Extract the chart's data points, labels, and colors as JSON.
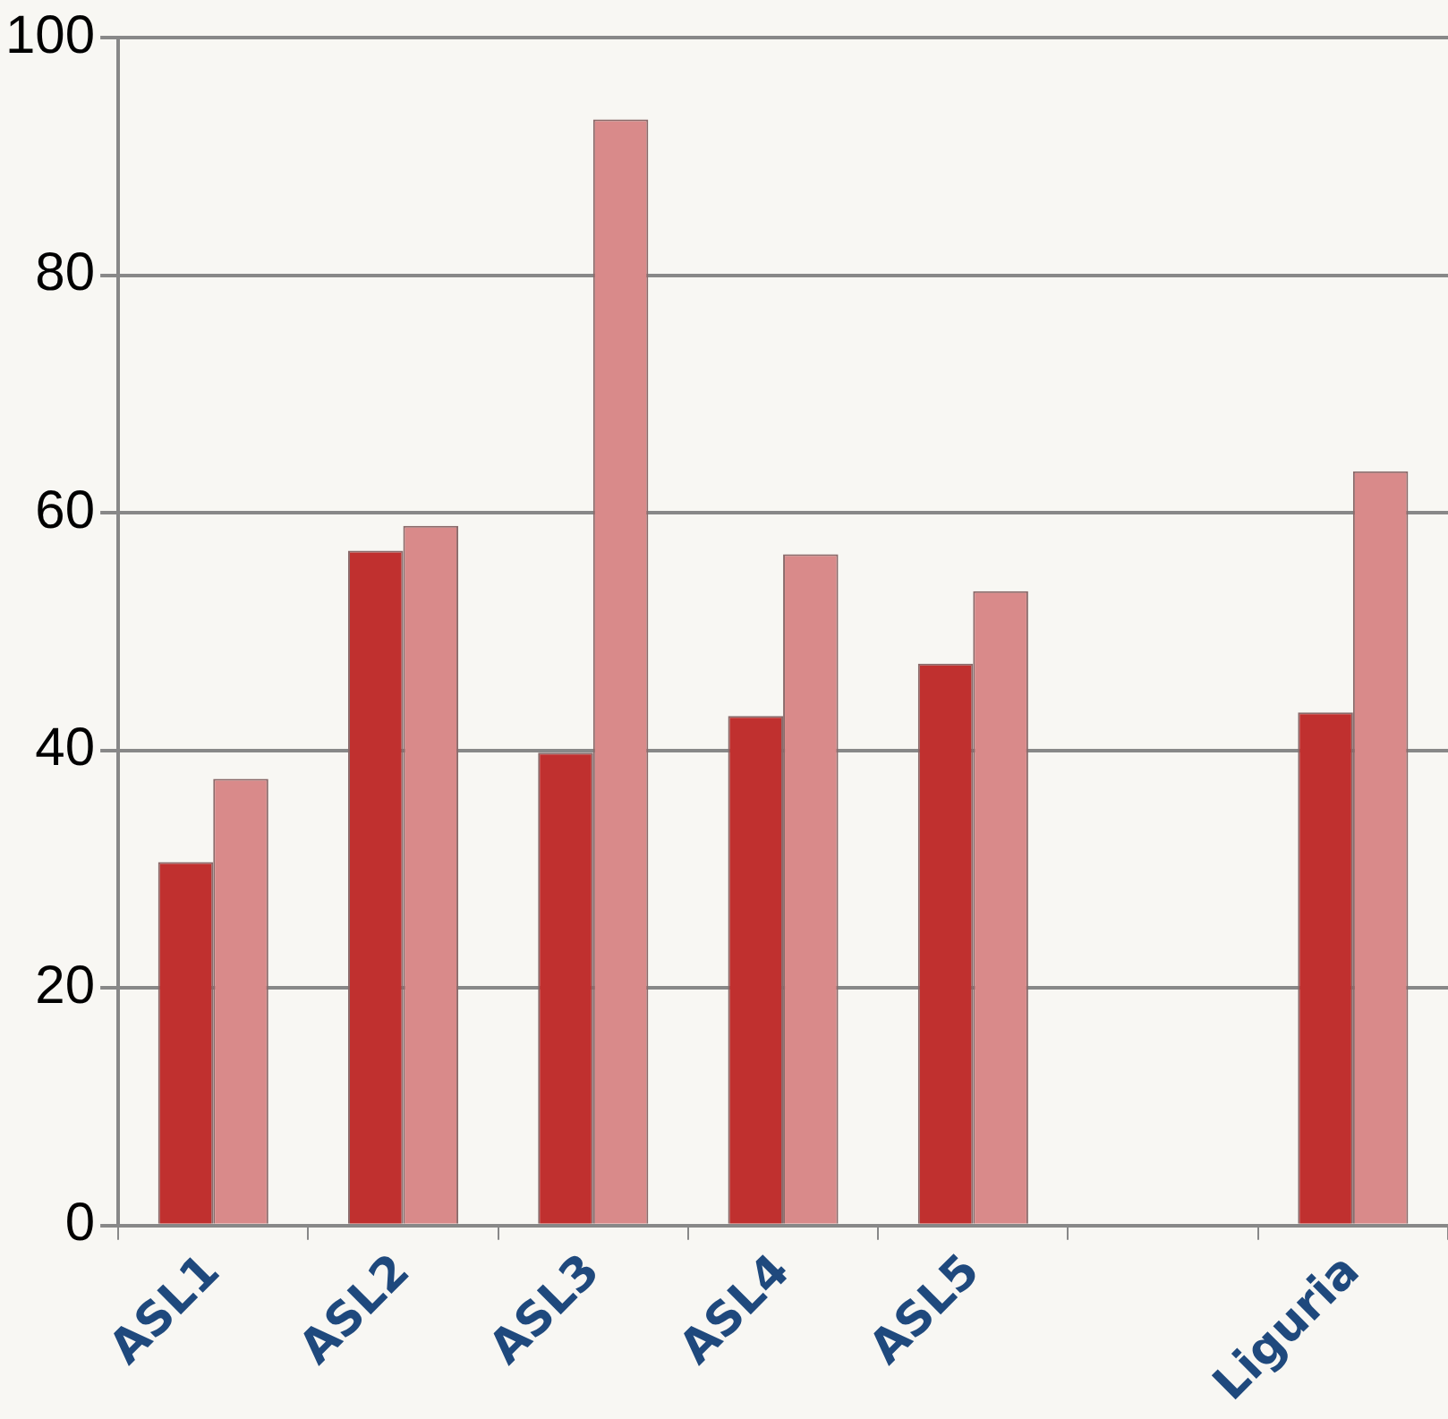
{
  "chart_data": {
    "type": "bar",
    "categories": [
      "ASL1",
      "ASL2",
      "ASL3",
      "ASL4",
      "ASL5",
      null,
      "Liguria"
    ],
    "series": [
      {
        "color": "#c0302f",
        "values": [
          30.6,
          56.8,
          39.8,
          42.9,
          47.3,
          null,
          43.2
        ]
      },
      {
        "color": "#d98a8a",
        "values": [
          37.6,
          58.9,
          93.1,
          56.5,
          53.4,
          null,
          63.5
        ]
      }
    ],
    "ylim": [
      0,
      100
    ],
    "yticks": [
      0,
      20,
      40,
      60,
      80,
      100
    ],
    "grid": "y",
    "legend": false
  }
}
